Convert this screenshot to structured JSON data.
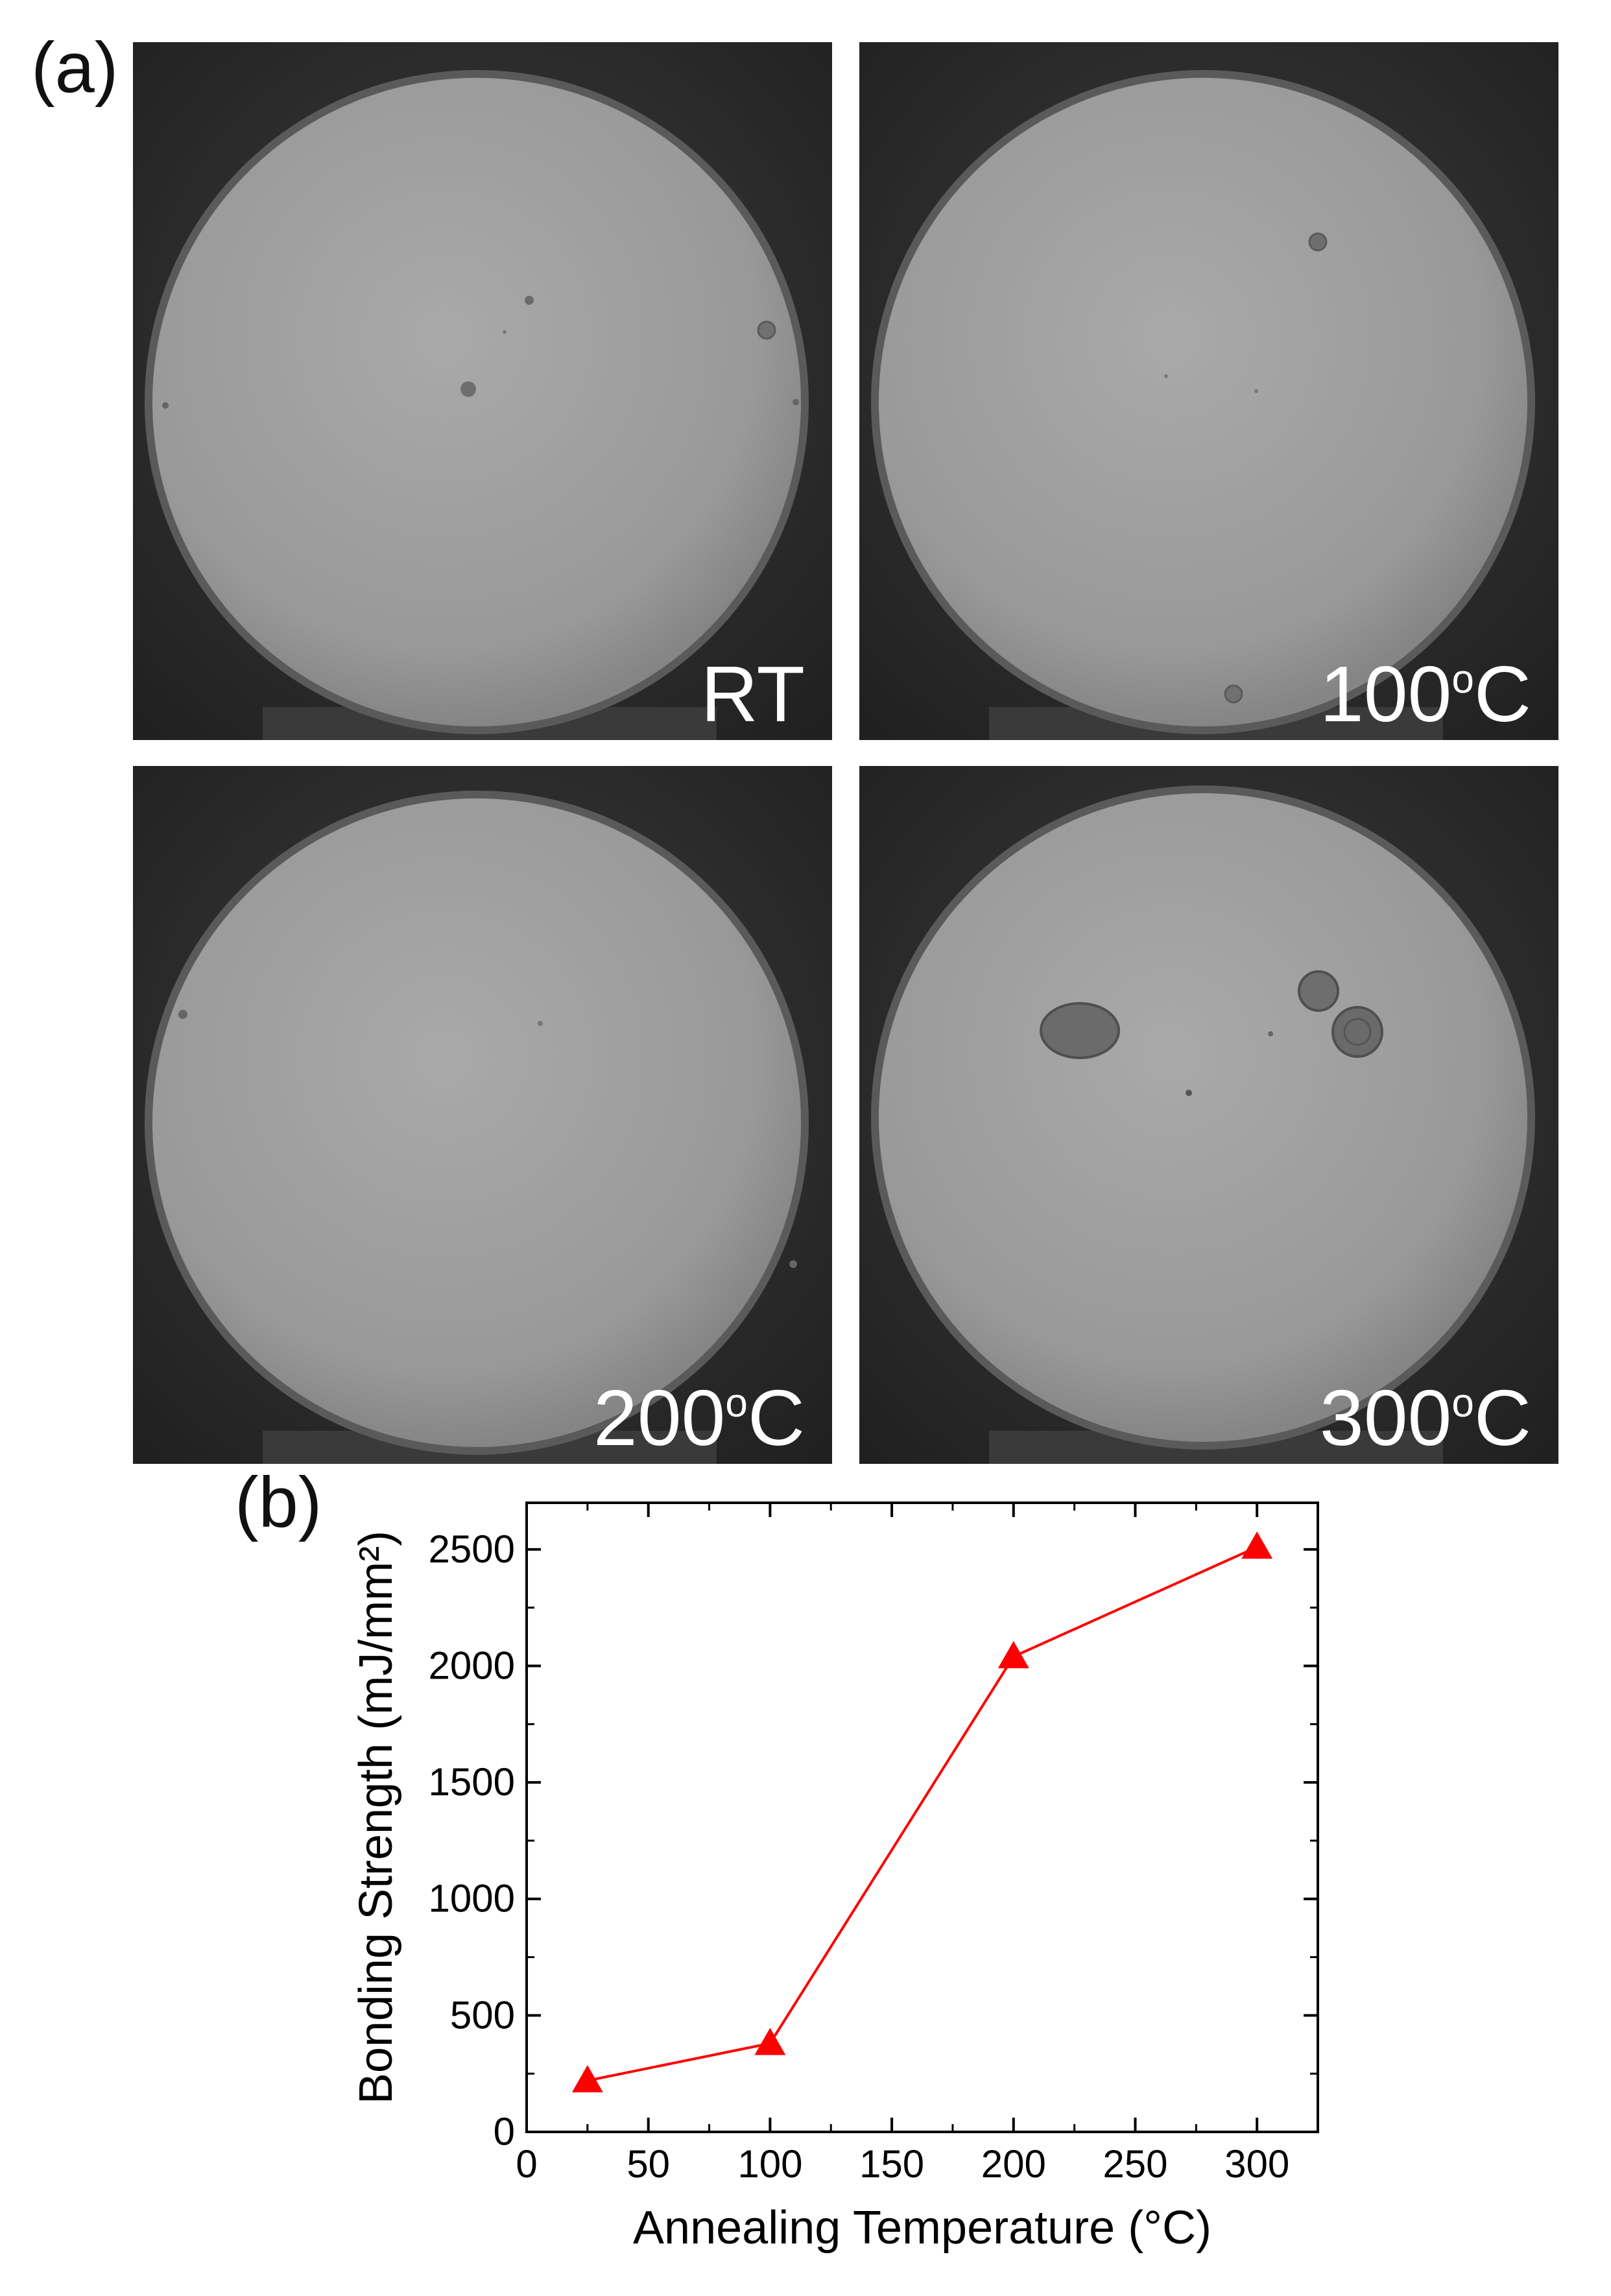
{
  "figure": {
    "panel_a_label": "(a)",
    "panel_b_label": "(b)"
  },
  "photos": [
    {
      "label": "RT",
      "label_sup": "",
      "label_suffix": ""
    },
    {
      "label": "100",
      "label_sup": "o",
      "label_suffix": "C"
    },
    {
      "label": "200",
      "label_sup": "o",
      "label_suffix": "C"
    },
    {
      "label": "300",
      "label_sup": "o",
      "label_suffix": "C"
    }
  ],
  "chart_data": {
    "type": "line",
    "title": "",
    "xlabel": "Annealing Temperature (°C)",
    "ylabel": "Bonding Strength (mJ/mm²)",
    "xlim": [
      0,
      325
    ],
    "ylim": [
      0,
      2700
    ],
    "x_ticks": [
      0,
      50,
      100,
      150,
      200,
      250,
      300
    ],
    "y_ticks": [
      0,
      500,
      1000,
      1500,
      2000,
      2500
    ],
    "grid": false,
    "legend": "none",
    "series": [
      {
        "x": [
          25,
          100,
          200,
          300
        ],
        "y": [
          220,
          380,
          2040,
          2510
        ],
        "error": [
          40,
          50,
          40,
          50
        ],
        "marker": "triangle-up",
        "color": "#ff0000"
      }
    ]
  }
}
